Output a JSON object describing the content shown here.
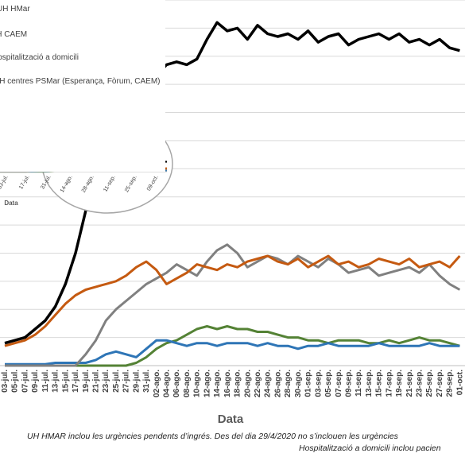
{
  "chart_data": {
    "type": "line",
    "xlabel": "Data",
    "ylim": [
      0,
      13
    ],
    "categories": [
      "03-jul.",
      "05-jul.",
      "07-jul.",
      "09-jul.",
      "11-jul.",
      "13-jul.",
      "15-jul.",
      "17-jul.",
      "19-jul.",
      "21-jul.",
      "23-jul.",
      "25-jul.",
      "27-jul.",
      "29-jul.",
      "31-jul.",
      "02-ago.",
      "04-ago.",
      "06-ago.",
      "08-ago.",
      "10-ago.",
      "12-ago.",
      "14-ago.",
      "16-ago.",
      "18-ago.",
      "20-ago.",
      "22-ago.",
      "24-ago.",
      "26-ago.",
      "28-ago.",
      "30-ago.",
      "01-sep.",
      "03-sep.",
      "05-sep.",
      "07-sep.",
      "09-sep.",
      "11-sep.",
      "13-sep.",
      "15-sep.",
      "17-sep.",
      "19-sep.",
      "21-sep.",
      "23-sep.",
      "25-sep.",
      "27-sep.",
      "29-sep.",
      "01-oct."
    ],
    "series": [
      {
        "name": "UH HMar",
        "color": "#000000",
        "values": [
          0.8,
          0.9,
          1.0,
          1.3,
          1.6,
          2.1,
          2.9,
          4.0,
          5.5,
          6.6,
          7.4,
          8.0,
          8.5,
          9.0,
          9.8,
          10.3,
          10.7,
          10.8,
          10.7,
          10.9,
          11.6,
          12.2,
          11.9,
          12.0,
          11.6,
          12.1,
          11.8,
          11.7,
          11.8,
          11.6,
          11.9,
          11.5,
          11.7,
          11.8,
          11.4,
          11.6,
          11.7,
          11.8,
          11.6,
          11.8,
          11.5,
          11.6,
          11.4,
          11.6,
          11.3,
          11.2
        ]
      },
      {
        "name": "UH CAEM",
        "color": "#C55A11",
        "values": [
          0.7,
          0.8,
          0.9,
          1.1,
          1.4,
          1.8,
          2.2,
          2.5,
          2.7,
          2.8,
          2.9,
          3.0,
          3.2,
          3.5,
          3.7,
          3.4,
          2.9,
          3.1,
          3.3,
          3.6,
          3.5,
          3.4,
          3.6,
          3.5,
          3.7,
          3.8,
          3.9,
          3.7,
          3.6,
          3.8,
          3.5,
          3.7,
          3.9,
          3.6,
          3.7,
          3.5,
          3.6,
          3.8,
          3.7,
          3.6,
          3.8,
          3.5,
          3.6,
          3.7,
          3.5,
          3.9
        ]
      },
      {
        "name": "Hospitalització a domicili",
        "color": "#808080",
        "values": [
          0.0,
          0.0,
          0.0,
          0.0,
          0.0,
          0.0,
          0.0,
          0.0,
          0.4,
          0.9,
          1.6,
          2.0,
          2.3,
          2.6,
          2.9,
          3.1,
          3.3,
          3.6,
          3.4,
          3.2,
          3.7,
          4.1,
          4.3,
          4.0,
          3.5,
          3.7,
          3.9,
          3.8,
          3.6,
          3.9,
          3.7,
          3.5,
          3.8,
          3.6,
          3.3,
          3.4,
          3.5,
          3.2,
          3.3,
          3.4,
          3.5,
          3.3,
          3.6,
          3.2,
          2.9,
          2.7
        ]
      },
      {
        "name": "UH centres PSMar (Esperança, Fòrum, CAEM)",
        "color": "#2E75B6",
        "values": [
          0.05,
          0.05,
          0.05,
          0.05,
          0.05,
          0.1,
          0.1,
          0.1,
          0.1,
          0.2,
          0.4,
          0.5,
          0.4,
          0.3,
          0.6,
          0.9,
          0.9,
          0.8,
          0.7,
          0.8,
          0.8,
          0.7,
          0.8,
          0.8,
          0.8,
          0.7,
          0.8,
          0.7,
          0.7,
          0.6,
          0.7,
          0.7,
          0.8,
          0.7,
          0.7,
          0.7,
          0.7,
          0.8,
          0.7,
          0.7,
          0.7,
          0.7,
          0.8,
          0.7,
          0.7,
          0.7
        ]
      },
      {
        "name": "",
        "color": "#548235",
        "values": [
          0.0,
          0.0,
          0.0,
          0.0,
          0.0,
          0.0,
          0.0,
          0.0,
          0.0,
          0.0,
          0.0,
          0.0,
          0.0,
          0.1,
          0.3,
          0.6,
          0.8,
          0.9,
          1.1,
          1.3,
          1.4,
          1.3,
          1.4,
          1.3,
          1.3,
          1.2,
          1.2,
          1.1,
          1.0,
          1.0,
          0.9,
          0.9,
          0.8,
          0.9,
          0.9,
          0.9,
          0.8,
          0.8,
          0.9,
          0.8,
          0.9,
          1.0,
          0.9,
          0.9,
          0.8,
          0.7
        ]
      }
    ],
    "grid": true
  },
  "legend_items": [
    "UH HMar",
    "UH CAEM",
    "Hospitalització a domicili",
    "UH centres PSMar (Esperança, Fòrum, CAEM)"
  ],
  "inset": {
    "xlabel": "Data",
    "ticks": [
      "03-jul.",
      "17-jul.",
      "31-jul.",
      "14-ago.",
      "28-ago.",
      "11-sep.",
      "25-sep.",
      "09-oct."
    ]
  },
  "footnotes": {
    "line1": "UH HMAR inclou les urgències pendents d’ingrés.  Des del dia 29/4/2020 no s’inclouen les urgències",
    "line2": "Hospitalització a domicili inclou pacien"
  }
}
